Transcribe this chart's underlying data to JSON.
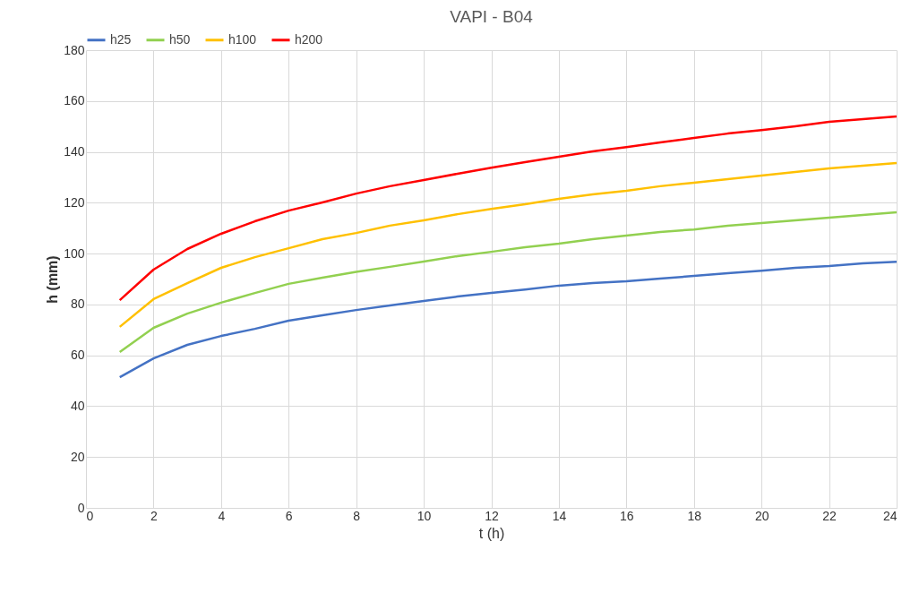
{
  "chart_data": {
    "type": "line",
    "title": "VAPI - B04",
    "xlabel": "t (h)",
    "ylabel": "h (mm)",
    "x": [
      1,
      2,
      3,
      4,
      5,
      6,
      7,
      8,
      9,
      10,
      11,
      12,
      13,
      14,
      15,
      16,
      17,
      18,
      19,
      20,
      21,
      22,
      23,
      24
    ],
    "series": [
      {
        "name": "h25",
        "color": "#4472c4",
        "values": [
          51.4,
          58.8,
          64.1,
          67.6,
          70.4,
          73.6,
          75.7,
          77.8,
          79.6,
          81.4,
          83.1,
          84.5,
          85.9,
          87.4,
          88.4,
          89.1,
          90.2,
          91.2,
          92.3,
          93.3,
          94.4,
          95.1,
          96.2,
          96.8
        ]
      },
      {
        "name": "h50",
        "color": "#92d050",
        "values": [
          61.3,
          70.8,
          76.4,
          80.7,
          84.5,
          88.1,
          90.5,
          92.8,
          94.8,
          96.9,
          99,
          100.7,
          102.5,
          103.9,
          105.7,
          107.1,
          108.5,
          109.5,
          111,
          112,
          113.1,
          114.1,
          115.2,
          116.2
        ]
      },
      {
        "name": "h100",
        "color": "#ffc000",
        "values": [
          71.2,
          82.1,
          88.4,
          94.4,
          98.6,
          102.1,
          105.7,
          108.1,
          111,
          113.1,
          115.5,
          117.6,
          119.4,
          121.5,
          123.3,
          124.7,
          126.5,
          127.9,
          129.3,
          130.7,
          132.1,
          133.5,
          134.6,
          135.6
        ]
      },
      {
        "name": "h200",
        "color": "#ff0000",
        "values": [
          81.7,
          93.7,
          101.8,
          107.8,
          112.7,
          116.9,
          120.1,
          123.6,
          126.5,
          128.9,
          131.4,
          133.8,
          136,
          138.1,
          140.2,
          141.9,
          143.7,
          145.5,
          147.2,
          148.6,
          150.1,
          151.8,
          152.9,
          153.9
        ]
      }
    ],
    "xlim": [
      0,
      24
    ],
    "xticks": [
      0,
      2,
      4,
      6,
      8,
      10,
      12,
      14,
      16,
      18,
      20,
      22,
      24
    ],
    "ylim": [
      0,
      180
    ],
    "yticks": [
      0,
      20,
      40,
      60,
      80,
      100,
      120,
      140,
      160,
      180
    ],
    "grid": true,
    "legend": "top",
    "marker": "none",
    "line_style": "solid"
  }
}
